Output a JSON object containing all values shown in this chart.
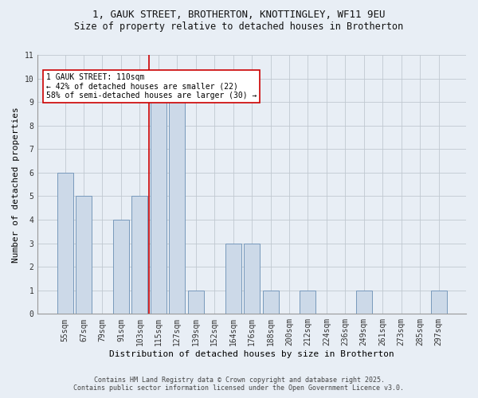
{
  "title1": "1, GAUK STREET, BROTHERTON, KNOTTINGLEY, WF11 9EU",
  "title2": "Size of property relative to detached houses in Brotherton",
  "xlabel": "Distribution of detached houses by size in Brotherton",
  "ylabel": "Number of detached properties",
  "categories": [
    "55sqm",
    "67sqm",
    "79sqm",
    "91sqm",
    "103sqm",
    "115sqm",
    "127sqm",
    "139sqm",
    "152sqm",
    "164sqm",
    "176sqm",
    "188sqm",
    "200sqm",
    "212sqm",
    "224sqm",
    "236sqm",
    "249sqm",
    "261sqm",
    "273sqm",
    "285sqm",
    "297sqm"
  ],
  "values": [
    6,
    5,
    0,
    4,
    5,
    9,
    9,
    1,
    0,
    3,
    3,
    1,
    0,
    1,
    0,
    0,
    1,
    0,
    0,
    0,
    1
  ],
  "bar_color": "#ccd9e8",
  "bar_edge_color": "#7799bb",
  "highlight_color": "#cc0000",
  "highlight_index": 5,
  "annotation_text": "1 GAUK STREET: 110sqm\n← 42% of detached houses are smaller (22)\n58% of semi-detached houses are larger (30) →",
  "annotation_box_color": "#ffffff",
  "annotation_box_edge": "#cc0000",
  "ylim": [
    0,
    11
  ],
  "yticks": [
    0,
    1,
    2,
    3,
    4,
    5,
    6,
    7,
    8,
    9,
    10,
    11
  ],
  "footer1": "Contains HM Land Registry data © Crown copyright and database right 2025.",
  "footer2": "Contains public sector information licensed under the Open Government Licence v3.0.",
  "bg_color": "#e8eef5",
  "grid_color": "#c0c8d0",
  "title1_fontsize": 9,
  "title2_fontsize": 8.5,
  "xlabel_fontsize": 8,
  "ylabel_fontsize": 8,
  "tick_fontsize": 7,
  "annotation_fontsize": 7
}
